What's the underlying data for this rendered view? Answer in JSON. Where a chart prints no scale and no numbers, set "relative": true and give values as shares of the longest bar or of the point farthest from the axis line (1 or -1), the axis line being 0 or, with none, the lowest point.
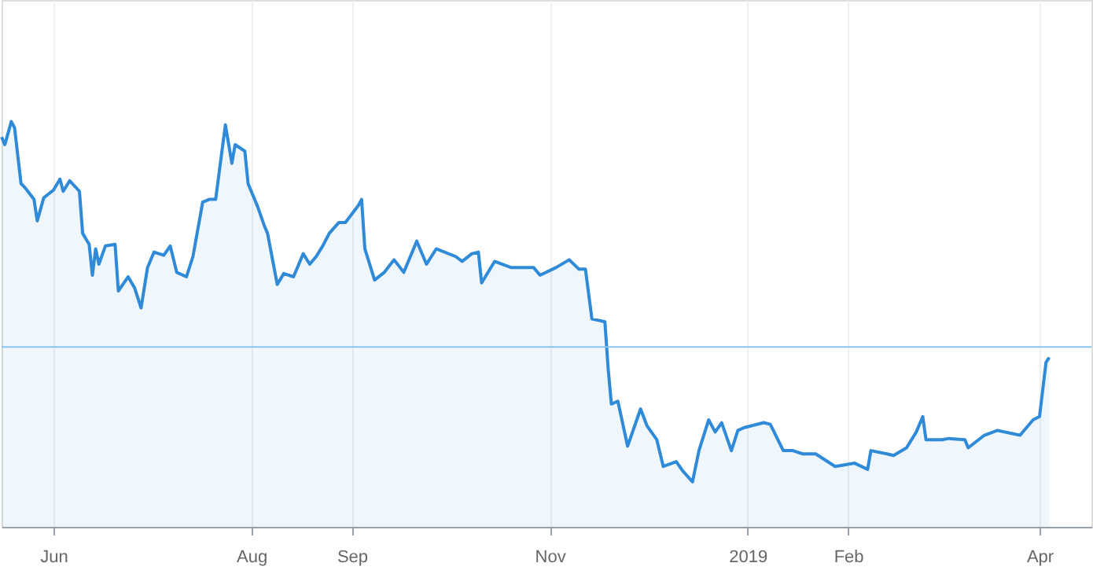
{
  "chart_data": {
    "type": "area",
    "relative": true,
    "x": [
      "2018-05-16",
      "2018-05-17",
      "2018-05-19",
      "2018-05-20",
      "2018-05-22",
      "2018-05-23",
      "2018-05-26",
      "2018-05-27",
      "2018-05-29",
      "2018-06-01",
      "2018-06-03",
      "2018-06-04",
      "2018-06-06",
      "2018-06-09",
      "2018-06-10",
      "2018-06-12",
      "2018-06-13",
      "2018-06-14",
      "2018-06-15",
      "2018-06-17",
      "2018-06-20",
      "2018-06-21",
      "2018-06-24",
      "2018-06-26",
      "2018-06-28",
      "2018-06-30",
      "2018-07-02",
      "2018-07-05",
      "2018-07-07",
      "2018-07-09",
      "2018-07-12",
      "2018-07-14",
      "2018-07-17",
      "2018-07-19",
      "2018-07-21",
      "2018-07-24",
      "2018-07-26",
      "2018-07-27",
      "2018-07-30",
      "2018-07-31",
      "2018-08-03",
      "2018-08-05",
      "2018-08-06",
      "2018-08-09",
      "2018-08-11",
      "2018-08-14",
      "2018-08-17",
      "2018-08-19",
      "2018-08-21",
      "2018-08-23",
      "2018-08-25",
      "2018-08-28",
      "2018-08-30",
      "2018-09-03",
      "2018-09-04",
      "2018-09-05",
      "2018-09-08",
      "2018-09-11",
      "2018-09-14",
      "2018-09-17",
      "2018-09-21",
      "2018-09-24",
      "2018-09-27",
      "2018-10-03",
      "2018-10-05",
      "2018-10-08",
      "2018-10-10",
      "2018-10-11",
      "2018-10-15",
      "2018-10-20",
      "2018-10-27",
      "2018-10-29",
      "2018-11-03",
      "2018-11-07",
      "2018-11-10",
      "2018-11-12",
      "2018-11-14",
      "2018-11-18",
      "2018-11-19",
      "2018-11-20",
      "2018-11-22",
      "2018-11-25",
      "2018-11-27",
      "2018-11-29",
      "2018-12-01",
      "2018-12-04",
      "2018-12-06",
      "2018-12-10",
      "2018-12-12",
      "2018-12-15",
      "2018-12-17",
      "2018-12-20",
      "2018-12-22",
      "2018-12-24",
      "2018-12-27",
      "2018-12-29",
      "2018-12-31",
      "2019-01-06",
      "2019-01-08",
      "2019-01-12",
      "2019-01-15",
      "2019-01-18",
      "2019-01-22",
      "2019-01-28",
      "2019-02-03",
      "2019-02-07",
      "2019-02-08",
      "2019-02-13",
      "2019-02-15",
      "2019-02-19",
      "2019-02-22",
      "2019-02-24",
      "2019-02-25",
      "2019-03-02",
      "2019-03-04",
      "2019-03-09",
      "2019-03-10",
      "2019-03-15",
      "2019-03-19",
      "2019-03-26",
      "2019-03-30",
      "2019-04-01",
      "2019-04-03",
      "2019-04-04"
    ],
    "series": [
      {
        "color": "#2f8ad8",
        "values": [
          0.962,
          0.943,
          1.0,
          0.985,
          0.847,
          0.839,
          0.808,
          0.755,
          0.812,
          0.831,
          0.858,
          0.828,
          0.854,
          0.828,
          0.724,
          0.697,
          0.621,
          0.686,
          0.648,
          0.693,
          0.697,
          0.582,
          0.617,
          0.59,
          0.54,
          0.64,
          0.678,
          0.67,
          0.693,
          0.628,
          0.617,
          0.667,
          0.801,
          0.808,
          0.808,
          0.992,
          0.897,
          0.943,
          0.927,
          0.847,
          0.789,
          0.743,
          0.724,
          0.598,
          0.625,
          0.617,
          0.674,
          0.648,
          0.667,
          0.693,
          0.724,
          0.751,
          0.751,
          0.793,
          0.808,
          0.686,
          0.609,
          0.628,
          0.659,
          0.628,
          0.705,
          0.648,
          0.686,
          0.667,
          0.655,
          0.674,
          0.678,
          0.602,
          0.655,
          0.64,
          0.64,
          0.621,
          0.64,
          0.659,
          0.636,
          0.636,
          0.513,
          0.506,
          0.391,
          0.303,
          0.31,
          0.199,
          0.245,
          0.291,
          0.249,
          0.215,
          0.149,
          0.161,
          0.138,
          0.111,
          0.188,
          0.264,
          0.234,
          0.257,
          0.188,
          0.238,
          0.245,
          0.257,
          0.253,
          0.188,
          0.188,
          0.18,
          0.18,
          0.149,
          0.157,
          0.142,
          0.188,
          0.18,
          0.176,
          0.195,
          0.234,
          0.272,
          0.215,
          0.215,
          0.218,
          0.215,
          0.195,
          0.226,
          0.238,
          0.226,
          0.264,
          0.272,
          0.406,
          0.418
        ]
      }
    ],
    "xlim": [
      "2018-05-16",
      "2019-04-17"
    ],
    "xticks": [
      {
        "value": "2018-06-01",
        "label": "Jun"
      },
      {
        "value": "2018-08-01",
        "label": "Aug"
      },
      {
        "value": "2018-09-01",
        "label": "Sep"
      },
      {
        "value": "2018-11-01",
        "label": "Nov"
      },
      {
        "value": "2019-01-01",
        "label": "2019"
      },
      {
        "value": "2019-02-01",
        "label": "Feb"
      },
      {
        "value": "2019-04-01",
        "label": "Apr"
      }
    ],
    "ref_lines": [
      {
        "axis": "y",
        "value": 0.444,
        "color": "#8cc4ee"
      }
    ],
    "grid": "x"
  }
}
